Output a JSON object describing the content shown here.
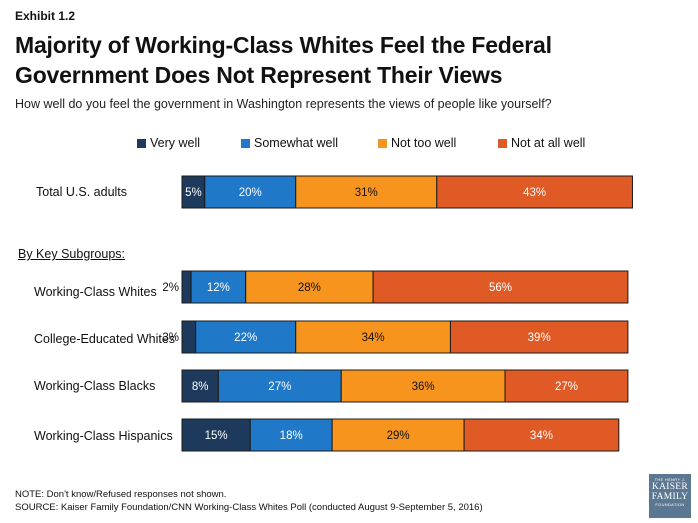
{
  "header": {
    "exhibit": "Exhibit 1.2",
    "title": "Majority of Working-Class Whites Feel the Federal Government Does Not Represent Their Views",
    "question": "How well do you feel the government in Washington represents the views of people like yourself?"
  },
  "subgroups_label": "By Key Subgroups:",
  "colors": {
    "very_well": "#1d3a5c",
    "somewhat_well": "#1f78c8",
    "not_too_well": "#f7941e",
    "not_at_all_well": "#e05a26"
  },
  "chart_data": {
    "type": "bar",
    "orientation": "horizontal",
    "stacked": true,
    "title": "Majority of Working-Class Whites Feel the Federal Government Does Not Represent Their Views",
    "xlabel": "",
    "ylabel": "",
    "xlim": [
      0,
      100
    ],
    "legend_position": "top",
    "categories": [
      "Total U.S. adults",
      "Working-Class Whites",
      "College-Educated Whites",
      "Working-Class Blacks",
      "Working-Class Hispanics"
    ],
    "series": [
      {
        "name": "Very well",
        "values": [
          5,
          2,
          3,
          8,
          15
        ],
        "labels": [
          "5%",
          "2%",
          "3%",
          "8%",
          "15%"
        ]
      },
      {
        "name": "Somewhat well",
        "values": [
          20,
          12,
          22,
          27,
          18
        ],
        "labels": [
          "20%",
          "12%",
          "22%",
          "27%",
          "18%"
        ]
      },
      {
        "name": "Not too well",
        "values": [
          31,
          28,
          34,
          36,
          29
        ],
        "labels": [
          "31%",
          "28%",
          "34%",
          "36%",
          "29%"
        ]
      },
      {
        "name": "Not at all well",
        "values": [
          43,
          56,
          39,
          27,
          34
        ],
        "labels": [
          "43%",
          "56%",
          "39%",
          "27%",
          "34%"
        ]
      }
    ]
  },
  "notes": {
    "note": "NOTE: Don't know/Refused responses not shown.",
    "source": "SOURCE: Kaiser Family Foundation/CNN Working-Class Whites Poll (conducted August 9-September 5, 2016)"
  },
  "logo": {
    "line1": "THE HENRY J.",
    "line2": "KAISER",
    "line3": "FAMILY",
    "line4": "FOUNDATION"
  }
}
